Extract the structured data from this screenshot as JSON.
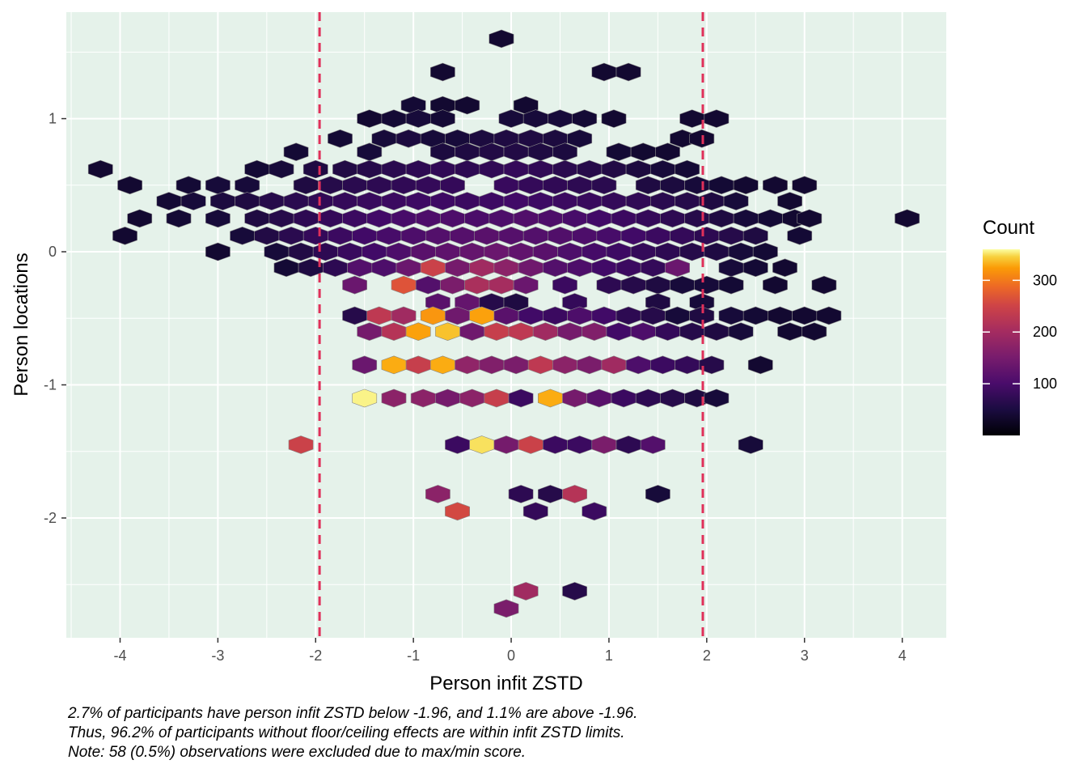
{
  "chart_data": {
    "type": "heatmap",
    "subtype": "hexbin",
    "title": "",
    "xlabel": "Person infit ZSTD",
    "ylabel": "Person locations",
    "xlim": [
      -4.55,
      4.45
    ],
    "ylim": [
      -2.9,
      1.8
    ],
    "x_ticks": [
      -4,
      -3,
      -2,
      -1,
      0,
      1,
      2,
      3,
      4
    ],
    "y_ticks": [
      -2,
      -1,
      0,
      1
    ],
    "x_tick_labels": [
      "-4",
      "-3",
      "-2",
      "-1",
      "0",
      "1",
      "2",
      "3",
      "4"
    ],
    "y_tick_labels": [
      "-2",
      "-1",
      "0",
      "1"
    ],
    "grid": true,
    "panel_background": "#e5f2ea",
    "reference_lines": [
      {
        "axis": "x",
        "value": -1.96,
        "style": "dashed",
        "color": "#e0305a"
      },
      {
        "axis": "x",
        "value": 1.96,
        "style": "dashed",
        "color": "#e0305a"
      }
    ],
    "legend": {
      "title": "Count",
      "position": "right",
      "min": 0,
      "max": 360,
      "breaks": [
        100,
        200,
        300
      ],
      "break_labels": [
        "100",
        "200",
        "300"
      ],
      "colormap": "inferno"
    },
    "hex_column_spacing": 0.1,
    "hex_row_spacing": 0.1,
    "bins": [
      [
        -0.1,
        1.6,
        10
      ],
      [
        -0.7,
        1.35,
        10
      ],
      [
        0.95,
        1.35,
        10
      ],
      [
        1.2,
        1.35,
        10
      ],
      [
        -1.0,
        1.1,
        12
      ],
      [
        -0.7,
        1.1,
        10
      ],
      [
        -0.45,
        1.1,
        10
      ],
      [
        0.15,
        1.1,
        10
      ],
      [
        -1.45,
        1.0,
        10
      ],
      [
        -1.2,
        1.0,
        12
      ],
      [
        -0.95,
        1.0,
        15
      ],
      [
        -0.7,
        1.0,
        12
      ],
      [
        0.0,
        1.0,
        15
      ],
      [
        0.25,
        1.0,
        15
      ],
      [
        0.5,
        1.0,
        15
      ],
      [
        0.75,
        1.0,
        12
      ],
      [
        1.05,
        1.0,
        10
      ],
      [
        1.85,
        1.0,
        10
      ],
      [
        2.1,
        1.0,
        10
      ],
      [
        -1.75,
        0.85,
        12
      ],
      [
        -1.3,
        0.85,
        15
      ],
      [
        -1.05,
        0.85,
        18
      ],
      [
        -0.8,
        0.85,
        15
      ],
      [
        -0.55,
        0.85,
        15
      ],
      [
        -0.3,
        0.85,
        18
      ],
      [
        -0.05,
        0.85,
        20
      ],
      [
        0.2,
        0.85,
        20
      ],
      [
        0.45,
        0.85,
        18
      ],
      [
        0.7,
        0.85,
        15
      ],
      [
        1.75,
        0.85,
        10
      ],
      [
        1.95,
        0.85,
        10
      ],
      [
        -2.2,
        0.75,
        12
      ],
      [
        -1.45,
        0.75,
        15
      ],
      [
        -0.7,
        0.75,
        18
      ],
      [
        -0.45,
        0.75,
        20
      ],
      [
        -0.2,
        0.75,
        22
      ],
      [
        0.05,
        0.75,
        22
      ],
      [
        0.3,
        0.75,
        20
      ],
      [
        0.55,
        0.75,
        18
      ],
      [
        1.1,
        0.75,
        12
      ],
      [
        1.35,
        0.75,
        10
      ],
      [
        1.6,
        0.75,
        10
      ],
      [
        -4.2,
        0.62,
        10
      ],
      [
        -2.6,
        0.62,
        12
      ],
      [
        -2.35,
        0.62,
        15
      ],
      [
        -2.0,
        0.62,
        20
      ],
      [
        -1.7,
        0.62,
        22
      ],
      [
        -1.45,
        0.62,
        25
      ],
      [
        -1.2,
        0.62,
        28
      ],
      [
        -0.95,
        0.62,
        30
      ],
      [
        -0.7,
        0.62,
        32
      ],
      [
        -0.45,
        0.62,
        30
      ],
      [
        -0.2,
        0.62,
        32
      ],
      [
        0.05,
        0.62,
        35
      ],
      [
        0.3,
        0.62,
        32
      ],
      [
        0.55,
        0.62,
        28
      ],
      [
        0.8,
        0.62,
        25
      ],
      [
        1.05,
        0.62,
        22
      ],
      [
        1.3,
        0.62,
        18
      ],
      [
        1.55,
        0.62,
        15
      ],
      [
        1.8,
        0.62,
        12
      ],
      [
        -3.9,
        0.5,
        10
      ],
      [
        -3.3,
        0.5,
        12
      ],
      [
        -3.0,
        0.5,
        15
      ],
      [
        -2.7,
        0.5,
        15
      ],
      [
        -2.1,
        0.5,
        20
      ],
      [
        -1.85,
        0.5,
        25
      ],
      [
        -1.6,
        0.5,
        28
      ],
      [
        -1.35,
        0.5,
        30
      ],
      [
        -1.1,
        0.5,
        32
      ],
      [
        -0.85,
        0.5,
        35
      ],
      [
        -0.6,
        0.5,
        35
      ],
      [
        -0.05,
        0.5,
        38
      ],
      [
        0.2,
        0.5,
        35
      ],
      [
        0.45,
        0.5,
        32
      ],
      [
        0.7,
        0.5,
        30
      ],
      [
        0.95,
        0.5,
        28
      ],
      [
        1.4,
        0.5,
        20
      ],
      [
        1.65,
        0.5,
        18
      ],
      [
        1.9,
        0.5,
        15
      ],
      [
        2.15,
        0.5,
        12
      ],
      [
        2.4,
        0.5,
        10
      ],
      [
        2.7,
        0.5,
        10
      ],
      [
        3.0,
        0.5,
        10
      ],
      [
        -3.5,
        0.38,
        12
      ],
      [
        -3.25,
        0.38,
        15
      ],
      [
        -2.95,
        0.38,
        18
      ],
      [
        -2.7,
        0.38,
        20
      ],
      [
        -2.45,
        0.38,
        25
      ],
      [
        -2.2,
        0.38,
        28
      ],
      [
        -1.95,
        0.38,
        32
      ],
      [
        -1.7,
        0.38,
        35
      ],
      [
        -1.45,
        0.38,
        38
      ],
      [
        -1.2,
        0.38,
        40
      ],
      [
        -0.95,
        0.38,
        42
      ],
      [
        -0.7,
        0.38,
        42
      ],
      [
        -0.45,
        0.38,
        40
      ],
      [
        -0.2,
        0.38,
        42
      ],
      [
        0.05,
        0.38,
        45
      ],
      [
        0.3,
        0.38,
        42
      ],
      [
        0.55,
        0.38,
        40
      ],
      [
        0.8,
        0.38,
        38
      ],
      [
        1.05,
        0.38,
        35
      ],
      [
        1.3,
        0.38,
        32
      ],
      [
        1.55,
        0.38,
        28
      ],
      [
        1.8,
        0.38,
        25
      ],
      [
        2.05,
        0.38,
        20
      ],
      [
        2.3,
        0.38,
        15
      ],
      [
        2.85,
        0.38,
        10
      ],
      [
        -3.8,
        0.25,
        10
      ],
      [
        -3.4,
        0.25,
        12
      ],
      [
        -3.0,
        0.25,
        15
      ],
      [
        -2.6,
        0.25,
        20
      ],
      [
        -2.35,
        0.25,
        25
      ],
      [
        -2.1,
        0.25,
        30
      ],
      [
        -1.85,
        0.25,
        35
      ],
      [
        -1.6,
        0.25,
        40
      ],
      [
        -1.35,
        0.25,
        45
      ],
      [
        -1.1,
        0.25,
        50
      ],
      [
        -0.85,
        0.25,
        55
      ],
      [
        -0.6,
        0.25,
        55
      ],
      [
        -0.35,
        0.25,
        52
      ],
      [
        -0.1,
        0.25,
        55
      ],
      [
        0.15,
        0.25,
        58
      ],
      [
        0.4,
        0.25,
        55
      ],
      [
        0.65,
        0.25,
        50
      ],
      [
        0.9,
        0.25,
        45
      ],
      [
        1.15,
        0.25,
        40
      ],
      [
        1.4,
        0.25,
        35
      ],
      [
        1.65,
        0.25,
        30
      ],
      [
        1.9,
        0.25,
        25
      ],
      [
        2.15,
        0.25,
        20
      ],
      [
        2.4,
        0.25,
        15
      ],
      [
        2.65,
        0.25,
        12
      ],
      [
        2.9,
        0.25,
        10
      ],
      [
        3.05,
        0.25,
        10
      ],
      [
        4.05,
        0.25,
        10
      ],
      [
        -3.95,
        0.12,
        10
      ],
      [
        -2.75,
        0.12,
        15
      ],
      [
        -2.5,
        0.12,
        22
      ],
      [
        -2.25,
        0.12,
        28
      ],
      [
        -2.0,
        0.12,
        35
      ],
      [
        -1.75,
        0.12,
        40
      ],
      [
        -1.5,
        0.12,
        45
      ],
      [
        -1.25,
        0.12,
        50
      ],
      [
        -1.0,
        0.12,
        55
      ],
      [
        -0.75,
        0.12,
        60
      ],
      [
        -0.5,
        0.12,
        62
      ],
      [
        -0.25,
        0.12,
        65
      ],
      [
        0.0,
        0.12,
        62
      ],
      [
        0.25,
        0.12,
        60
      ],
      [
        0.5,
        0.12,
        58
      ],
      [
        0.75,
        0.12,
        55
      ],
      [
        1.0,
        0.12,
        50
      ],
      [
        1.25,
        0.12,
        45
      ],
      [
        1.5,
        0.12,
        40
      ],
      [
        1.75,
        0.12,
        35
      ],
      [
        2.0,
        0.12,
        30
      ],
      [
        2.25,
        0.12,
        25
      ],
      [
        2.5,
        0.12,
        20
      ],
      [
        2.95,
        0.12,
        12
      ],
      [
        -3.0,
        0.0,
        10
      ],
      [
        -2.4,
        0.0,
        15
      ],
      [
        -2.15,
        0.0,
        22
      ],
      [
        -1.9,
        0.0,
        30
      ],
      [
        -1.65,
        0.0,
        38
      ],
      [
        -1.4,
        0.0,
        45
      ],
      [
        -1.15,
        0.0,
        55
      ],
      [
        -0.9,
        0.0,
        65
      ],
      [
        -0.65,
        0.0,
        70
      ],
      [
        -0.4,
        0.0,
        75
      ],
      [
        -0.15,
        0.0,
        80
      ],
      [
        0.1,
        0.0,
        72
      ],
      [
        0.35,
        0.0,
        65
      ],
      [
        0.6,
        0.0,
        55
      ],
      [
        0.85,
        0.0,
        48
      ],
      [
        1.1,
        0.0,
        42
      ],
      [
        1.35,
        0.0,
        35
      ],
      [
        1.6,
        0.0,
        30
      ],
      [
        1.85,
        0.0,
        25
      ],
      [
        2.1,
        0.0,
        20
      ],
      [
        2.35,
        0.0,
        15
      ],
      [
        2.6,
        0.0,
        12
      ],
      [
        -2.3,
        -0.12,
        12
      ],
      [
        -2.05,
        -0.12,
        20
      ],
      [
        -1.8,
        -0.12,
        30
      ],
      [
        -1.55,
        -0.12,
        60
      ],
      [
        -1.3,
        -0.12,
        55
      ],
      [
        -1.05,
        -0.12,
        80
      ],
      [
        -0.8,
        -0.12,
        175
      ],
      [
        -0.55,
        -0.12,
        90
      ],
      [
        -0.3,
        -0.12,
        130
      ],
      [
        -0.05,
        -0.12,
        110
      ],
      [
        0.2,
        -0.12,
        85
      ],
      [
        0.45,
        -0.12,
        60
      ],
      [
        0.7,
        -0.12,
        55
      ],
      [
        0.95,
        -0.12,
        45
      ],
      [
        1.2,
        -0.12,
        40
      ],
      [
        1.45,
        -0.12,
        35
      ],
      [
        1.7,
        -0.12,
        80
      ],
      [
        2.25,
        -0.12,
        15
      ],
      [
        2.5,
        -0.12,
        12
      ],
      [
        2.8,
        -0.12,
        10
      ],
      [
        -1.6,
        -0.25,
        80
      ],
      [
        -1.1,
        -0.25,
        200
      ],
      [
        -0.85,
        -0.25,
        60
      ],
      [
        -0.6,
        -0.25,
        95
      ],
      [
        -0.35,
        -0.25,
        140
      ],
      [
        -0.1,
        -0.25,
        135
      ],
      [
        0.15,
        -0.25,
        80
      ],
      [
        0.55,
        -0.25,
        40
      ],
      [
        1.0,
        -0.25,
        30
      ],
      [
        1.25,
        -0.25,
        25
      ],
      [
        1.5,
        -0.25,
        20
      ],
      [
        1.75,
        -0.25,
        15
      ],
      [
        2.0,
        -0.25,
        15
      ],
      [
        2.25,
        -0.25,
        12
      ],
      [
        2.7,
        -0.25,
        10
      ],
      [
        3.2,
        -0.25,
        10
      ],
      [
        -0.75,
        -0.38,
        65
      ],
      [
        -0.45,
        -0.38,
        75
      ],
      [
        -0.2,
        -0.38,
        25
      ],
      [
        0.05,
        -0.38,
        20
      ],
      [
        0.65,
        -0.38,
        35
      ],
      [
        1.5,
        -0.38,
        20
      ],
      [
        1.95,
        -0.38,
        15
      ],
      [
        -1.6,
        -0.48,
        25
      ],
      [
        -1.35,
        -0.48,
        160
      ],
      [
        -1.1,
        -0.48,
        130
      ],
      [
        -0.8,
        -0.48,
        270
      ],
      [
        -0.55,
        -0.48,
        85
      ],
      [
        -0.3,
        -0.48,
        280
      ],
      [
        -0.05,
        -0.48,
        65
      ],
      [
        0.2,
        -0.48,
        45
      ],
      [
        0.45,
        -0.48,
        40
      ],
      [
        0.7,
        -0.48,
        55
      ],
      [
        0.95,
        -0.48,
        45
      ],
      [
        1.2,
        -0.48,
        30
      ],
      [
        1.45,
        -0.48,
        25
      ],
      [
        1.7,
        -0.48,
        15
      ],
      [
        1.95,
        -0.48,
        20
      ],
      [
        2.25,
        -0.48,
        15
      ],
      [
        2.5,
        -0.48,
        12
      ],
      [
        2.75,
        -0.48,
        10
      ],
      [
        3.0,
        -0.48,
        10
      ],
      [
        3.25,
        -0.48,
        10
      ],
      [
        -1.45,
        -0.6,
        90
      ],
      [
        -1.2,
        -0.6,
        150
      ],
      [
        -0.95,
        -0.6,
        280
      ],
      [
        -0.65,
        -0.6,
        310
      ],
      [
        -0.4,
        -0.6,
        85
      ],
      [
        -0.15,
        -0.6,
        170
      ],
      [
        0.1,
        -0.6,
        160
      ],
      [
        0.35,
        -0.6,
        130
      ],
      [
        0.6,
        -0.6,
        90
      ],
      [
        0.85,
        -0.6,
        100
      ],
      [
        1.1,
        -0.6,
        45
      ],
      [
        1.35,
        -0.6,
        55
      ],
      [
        1.6,
        -0.6,
        35
      ],
      [
        1.85,
        -0.6,
        25
      ],
      [
        2.1,
        -0.6,
        20
      ],
      [
        2.35,
        -0.6,
        15
      ],
      [
        2.85,
        -0.6,
        10
      ],
      [
        3.1,
        -0.6,
        10
      ],
      [
        -1.5,
        -0.85,
        80
      ],
      [
        -1.2,
        -0.85,
        290
      ],
      [
        -0.95,
        -0.85,
        170
      ],
      [
        -0.7,
        -0.85,
        290
      ],
      [
        -0.45,
        -0.85,
        115
      ],
      [
        -0.2,
        -0.85,
        100
      ],
      [
        0.05,
        -0.85,
        95
      ],
      [
        0.3,
        -0.85,
        160
      ],
      [
        0.55,
        -0.85,
        110
      ],
      [
        0.8,
        -0.85,
        95
      ],
      [
        1.05,
        -0.85,
        130
      ],
      [
        1.3,
        -0.85,
        55
      ],
      [
        1.55,
        -0.85,
        40
      ],
      [
        1.8,
        -0.85,
        35
      ],
      [
        2.05,
        -0.85,
        25
      ],
      [
        2.55,
        -0.85,
        10
      ],
      [
        -1.5,
        -1.1,
        360
      ],
      [
        -1.2,
        -1.1,
        110
      ],
      [
        -0.9,
        -1.1,
        110
      ],
      [
        -0.65,
        -1.1,
        90
      ],
      [
        -0.4,
        -1.1,
        110
      ],
      [
        -0.15,
        -1.1,
        170
      ],
      [
        0.1,
        -1.1,
        40
      ],
      [
        0.4,
        -1.1,
        290
      ],
      [
        0.65,
        -1.1,
        90
      ],
      [
        0.9,
        -1.1,
        65
      ],
      [
        1.15,
        -1.1,
        40
      ],
      [
        1.4,
        -1.1,
        30
      ],
      [
        1.65,
        -1.1,
        25
      ],
      [
        1.9,
        -1.1,
        20
      ],
      [
        2.1,
        -1.1,
        15
      ],
      [
        -2.15,
        -1.45,
        175
      ],
      [
        -0.55,
        -1.45,
        40
      ],
      [
        -0.3,
        -1.45,
        340
      ],
      [
        -0.05,
        -1.45,
        90
      ],
      [
        0.2,
        -1.45,
        175
      ],
      [
        0.45,
        -1.45,
        40
      ],
      [
        0.7,
        -1.45,
        40
      ],
      [
        0.95,
        -1.45,
        95
      ],
      [
        1.2,
        -1.45,
        30
      ],
      [
        1.45,
        -1.45,
        60
      ],
      [
        2.45,
        -1.45,
        15
      ],
      [
        -0.75,
        -1.82,
        110
      ],
      [
        0.1,
        -1.82,
        30
      ],
      [
        0.4,
        -1.82,
        25
      ],
      [
        0.65,
        -1.82,
        150
      ],
      [
        1.5,
        -1.82,
        15
      ],
      [
        -0.55,
        -1.95,
        185
      ],
      [
        0.25,
        -1.95,
        35
      ],
      [
        0.85,
        -1.95,
        40
      ],
      [
        0.15,
        -2.55,
        130
      ],
      [
        0.65,
        -2.55,
        25
      ],
      [
        -0.05,
        -2.68,
        95
      ]
    ]
  },
  "caption": {
    "line1": "2.7% of participants have person infit ZSTD below -1.96, and 1.1% are above -1.96.",
    "line2": "Thus, 96.2% of participants without floor/ceiling effects are within infit ZSTD limits.",
    "line3": "Note: 58 (0.5%) observations were excluded due to max/min score."
  }
}
